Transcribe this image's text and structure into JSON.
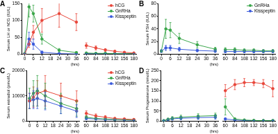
{
  "chart_data": [
    {
      "type": "line",
      "title": "A",
      "y_label": "Serum LH or hCG (IU/L)",
      "x_label": "(hrs)",
      "x": [
        0,
        3,
        6,
        12,
        24,
        36
      ],
      "xlim": [
        -2,
        38
      ],
      "xticks": [
        0,
        6,
        12,
        18,
        24,
        30,
        36
      ],
      "ylim": [
        0,
        150
      ],
      "yticks": [
        0,
        50,
        100,
        150
      ],
      "grid": false,
      "series": [
        {
          "name": "hCG",
          "color": "#e8473b",
          "values": [
            0,
            30,
            65,
            100,
            120,
            95
          ],
          "errors": [
            0,
            10,
            20,
            35,
            40,
            25
          ]
        },
        {
          "name": "GnRHa",
          "color": "#3aa64a",
          "values": [
            2,
            140,
            120,
            45,
            12,
            5
          ],
          "errors": [
            1,
            30,
            25,
            15,
            5,
            2
          ]
        },
        {
          "name": "Kisspeptin",
          "color": "#3b5bdb",
          "values": [
            2,
            45,
            30,
            6,
            2,
            1
          ],
          "errors": [
            1,
            20,
            15,
            3,
            1,
            1
          ]
        }
      ]
    },
    {
      "type": "line",
      "tick_labels": "x",
      "legend": "top-right",
      "x": [
        60,
        84,
        108,
        132,
        156,
        180
      ],
      "xlim": [
        54,
        186
      ],
      "xticks": [
        60,
        84,
        108,
        132,
        156,
        180
      ],
      "ylim": [
        0,
        150
      ],
      "grid": false,
      "series": [
        {
          "name": "hCG",
          "color": "#e8473b",
          "values": [
            25,
            18,
            12,
            8,
            5,
            3
          ],
          "errors": [
            8,
            6,
            4,
            3,
            2,
            1
          ]
        },
        {
          "name": "GnRHa",
          "color": "#3aa64a",
          "values": [
            3,
            2,
            2,
            1,
            1,
            1
          ],
          "errors": [
            1,
            1,
            1,
            1,
            1,
            1
          ]
        },
        {
          "name": "Kisspeptin",
          "color": "#3b5bdb",
          "values": [
            1,
            1,
            1,
            1,
            1,
            1
          ],
          "errors": [
            1,
            1,
            1,
            1,
            1,
            1
          ]
        }
      ]
    },
    {
      "type": "line",
      "title": "B",
      "y_label": "Serum FSH (IU/L)",
      "x_label": "(hrs)",
      "x": [
        0,
        3,
        6,
        12,
        24,
        36
      ],
      "xlim": [
        -2,
        38
      ],
      "xticks": [
        0,
        6,
        12,
        18,
        24,
        30,
        36
      ],
      "ylim": [
        0,
        80
      ],
      "yticks": [
        0,
        20,
        40,
        60,
        80
      ],
      "grid": false,
      "series": [
        {
          "name": "GnRHa",
          "color": "#3aa64a",
          "values": [
            5,
            40,
            38,
            25,
            15,
            8
          ],
          "errors": [
            2,
            15,
            12,
            8,
            5,
            3
          ]
        },
        {
          "name": "Kisspeptin",
          "color": "#3b5bdb",
          "values": [
            5,
            10,
            10,
            8,
            6,
            5
          ],
          "errors": [
            2,
            4,
            4,
            3,
            2,
            2
          ]
        }
      ]
    },
    {
      "type": "line",
      "tick_labels": "x",
      "legend": "top-right",
      "x": [
        60,
        84,
        108,
        132,
        156,
        180
      ],
      "xlim": [
        54,
        186
      ],
      "xticks": [
        60,
        84,
        108,
        132,
        156,
        180
      ],
      "ylim": [
        0,
        80
      ],
      "grid": false,
      "series": [
        {
          "name": "GnRHa",
          "color": "#3aa64a",
          "values": [
            7,
            7,
            6,
            6,
            5,
            5
          ],
          "errors": [
            3,
            3,
            2,
            2,
            2,
            2
          ]
        },
        {
          "name": "Kisspeptin",
          "color": "#3b5bdb",
          "values": [
            4,
            4,
            4,
            4,
            4,
            4
          ],
          "errors": [
            2,
            2,
            2,
            2,
            2,
            2
          ]
        }
      ]
    },
    {
      "type": "line",
      "title": "C",
      "y_label": "Serum estradiol (pmol/L)",
      "x_label": "(hrs)",
      "x": [
        0,
        3,
        6,
        12,
        24,
        36
      ],
      "xlim": [
        -2,
        38
      ],
      "xticks": [
        0,
        6,
        12,
        18,
        24,
        30,
        36
      ],
      "ylim": [
        0,
        20000
      ],
      "yticks": [
        0,
        10000,
        20000
      ],
      "grid": false,
      "series": [
        {
          "name": "hCG",
          "color": "#e8473b",
          "values": [
            8000,
            9500,
            11000,
            12000,
            10000,
            8000
          ],
          "errors": [
            3000,
            4000,
            5000,
            6000,
            5000,
            4000
          ]
        },
        {
          "name": "GnRHa",
          "color": "#3aa64a",
          "values": [
            9000,
            11000,
            12000,
            10000,
            7000,
            5000
          ],
          "errors": [
            4000,
            5000,
            6000,
            5000,
            4000,
            3000
          ]
        },
        {
          "name": "Kisspeptin",
          "color": "#3b5bdb",
          "values": [
            8000,
            8500,
            9000,
            8000,
            6000,
            4000
          ],
          "errors": [
            3000,
            3500,
            4000,
            3500,
            3000,
            2500
          ]
        }
      ]
    },
    {
      "type": "line",
      "tick_labels": "x",
      "legend": "top-right",
      "x": [
        60,
        84,
        108,
        132,
        156,
        180
      ],
      "xlim": [
        54,
        186
      ],
      "xticks": [
        60,
        84,
        108,
        132,
        156,
        180
      ],
      "ylim": [
        0,
        20000
      ],
      "grid": false,
      "series": [
        {
          "name": "hCG",
          "color": "#e8473b",
          "values": [
            3000,
            2000,
            1500,
            1000,
            800,
            600
          ],
          "errors": [
            1000,
            800,
            600,
            400,
            300,
            300
          ]
        },
        {
          "name": "GnRHa",
          "color": "#3aa64a",
          "values": [
            1500,
            1000,
            800,
            600,
            500,
            400
          ],
          "errors": [
            600,
            400,
            300,
            300,
            200,
            200
          ]
        },
        {
          "name": "Kisspeptin",
          "color": "#3b5bdb",
          "values": [
            1000,
            800,
            600,
            500,
            400,
            300
          ],
          "errors": [
            500,
            300,
            300,
            200,
            200,
            200
          ]
        }
      ]
    },
    {
      "type": "line",
      "title": "D",
      "y_label": "Serum Progesterone (nmol/L)",
      "x_label": "(hrs)",
      "x": [
        0,
        3,
        6,
        12,
        24,
        36
      ],
      "xlim": [
        -2,
        38
      ],
      "xticks": [
        0,
        6,
        12,
        18,
        24,
        30,
        36
      ],
      "ylim": [
        0,
        250
      ],
      "yticks": [
        0,
        50,
        100,
        150,
        200,
        250
      ],
      "grid": false,
      "series": [
        {
          "name": "GnRHa",
          "color": "#3aa64a",
          "values": [
            3,
            10,
            15,
            20,
            25,
            28
          ],
          "errors": [
            2,
            5,
            8,
            10,
            12,
            12
          ]
        },
        {
          "name": "Kisspeptin",
          "color": "#3b5bdb",
          "values": [
            3,
            8,
            12,
            15,
            18,
            20
          ],
          "errors": [
            2,
            4,
            6,
            8,
            9,
            10
          ]
        }
      ]
    },
    {
      "type": "line",
      "tick_labels": "x",
      "x": [
        60,
        84,
        108,
        132,
        156,
        180
      ],
      "xlim": [
        54,
        186
      ],
      "xticks": [
        60,
        84,
        108,
        132,
        156,
        180
      ],
      "ylim": [
        0,
        250
      ],
      "grid": false,
      "series": [
        {
          "name": "hCG",
          "color": "#e8473b",
          "values": [
            150,
            180,
            190,
            190,
            185,
            160
          ],
          "errors": [
            30,
            25,
            20,
            15,
            20,
            40
          ]
        },
        {
          "name": "GnRHa",
          "color": "#3aa64a",
          "values": [
            70,
            10,
            5,
            3,
            2,
            2
          ],
          "errors": [
            40,
            5,
            3,
            2,
            1,
            1
          ]
        },
        {
          "name": "Kisspeptin",
          "color": "#3b5bdb",
          "values": [
            10,
            5,
            3,
            2,
            2,
            2
          ],
          "errors": [
            5,
            3,
            2,
            1,
            1,
            1
          ]
        }
      ]
    }
  ]
}
